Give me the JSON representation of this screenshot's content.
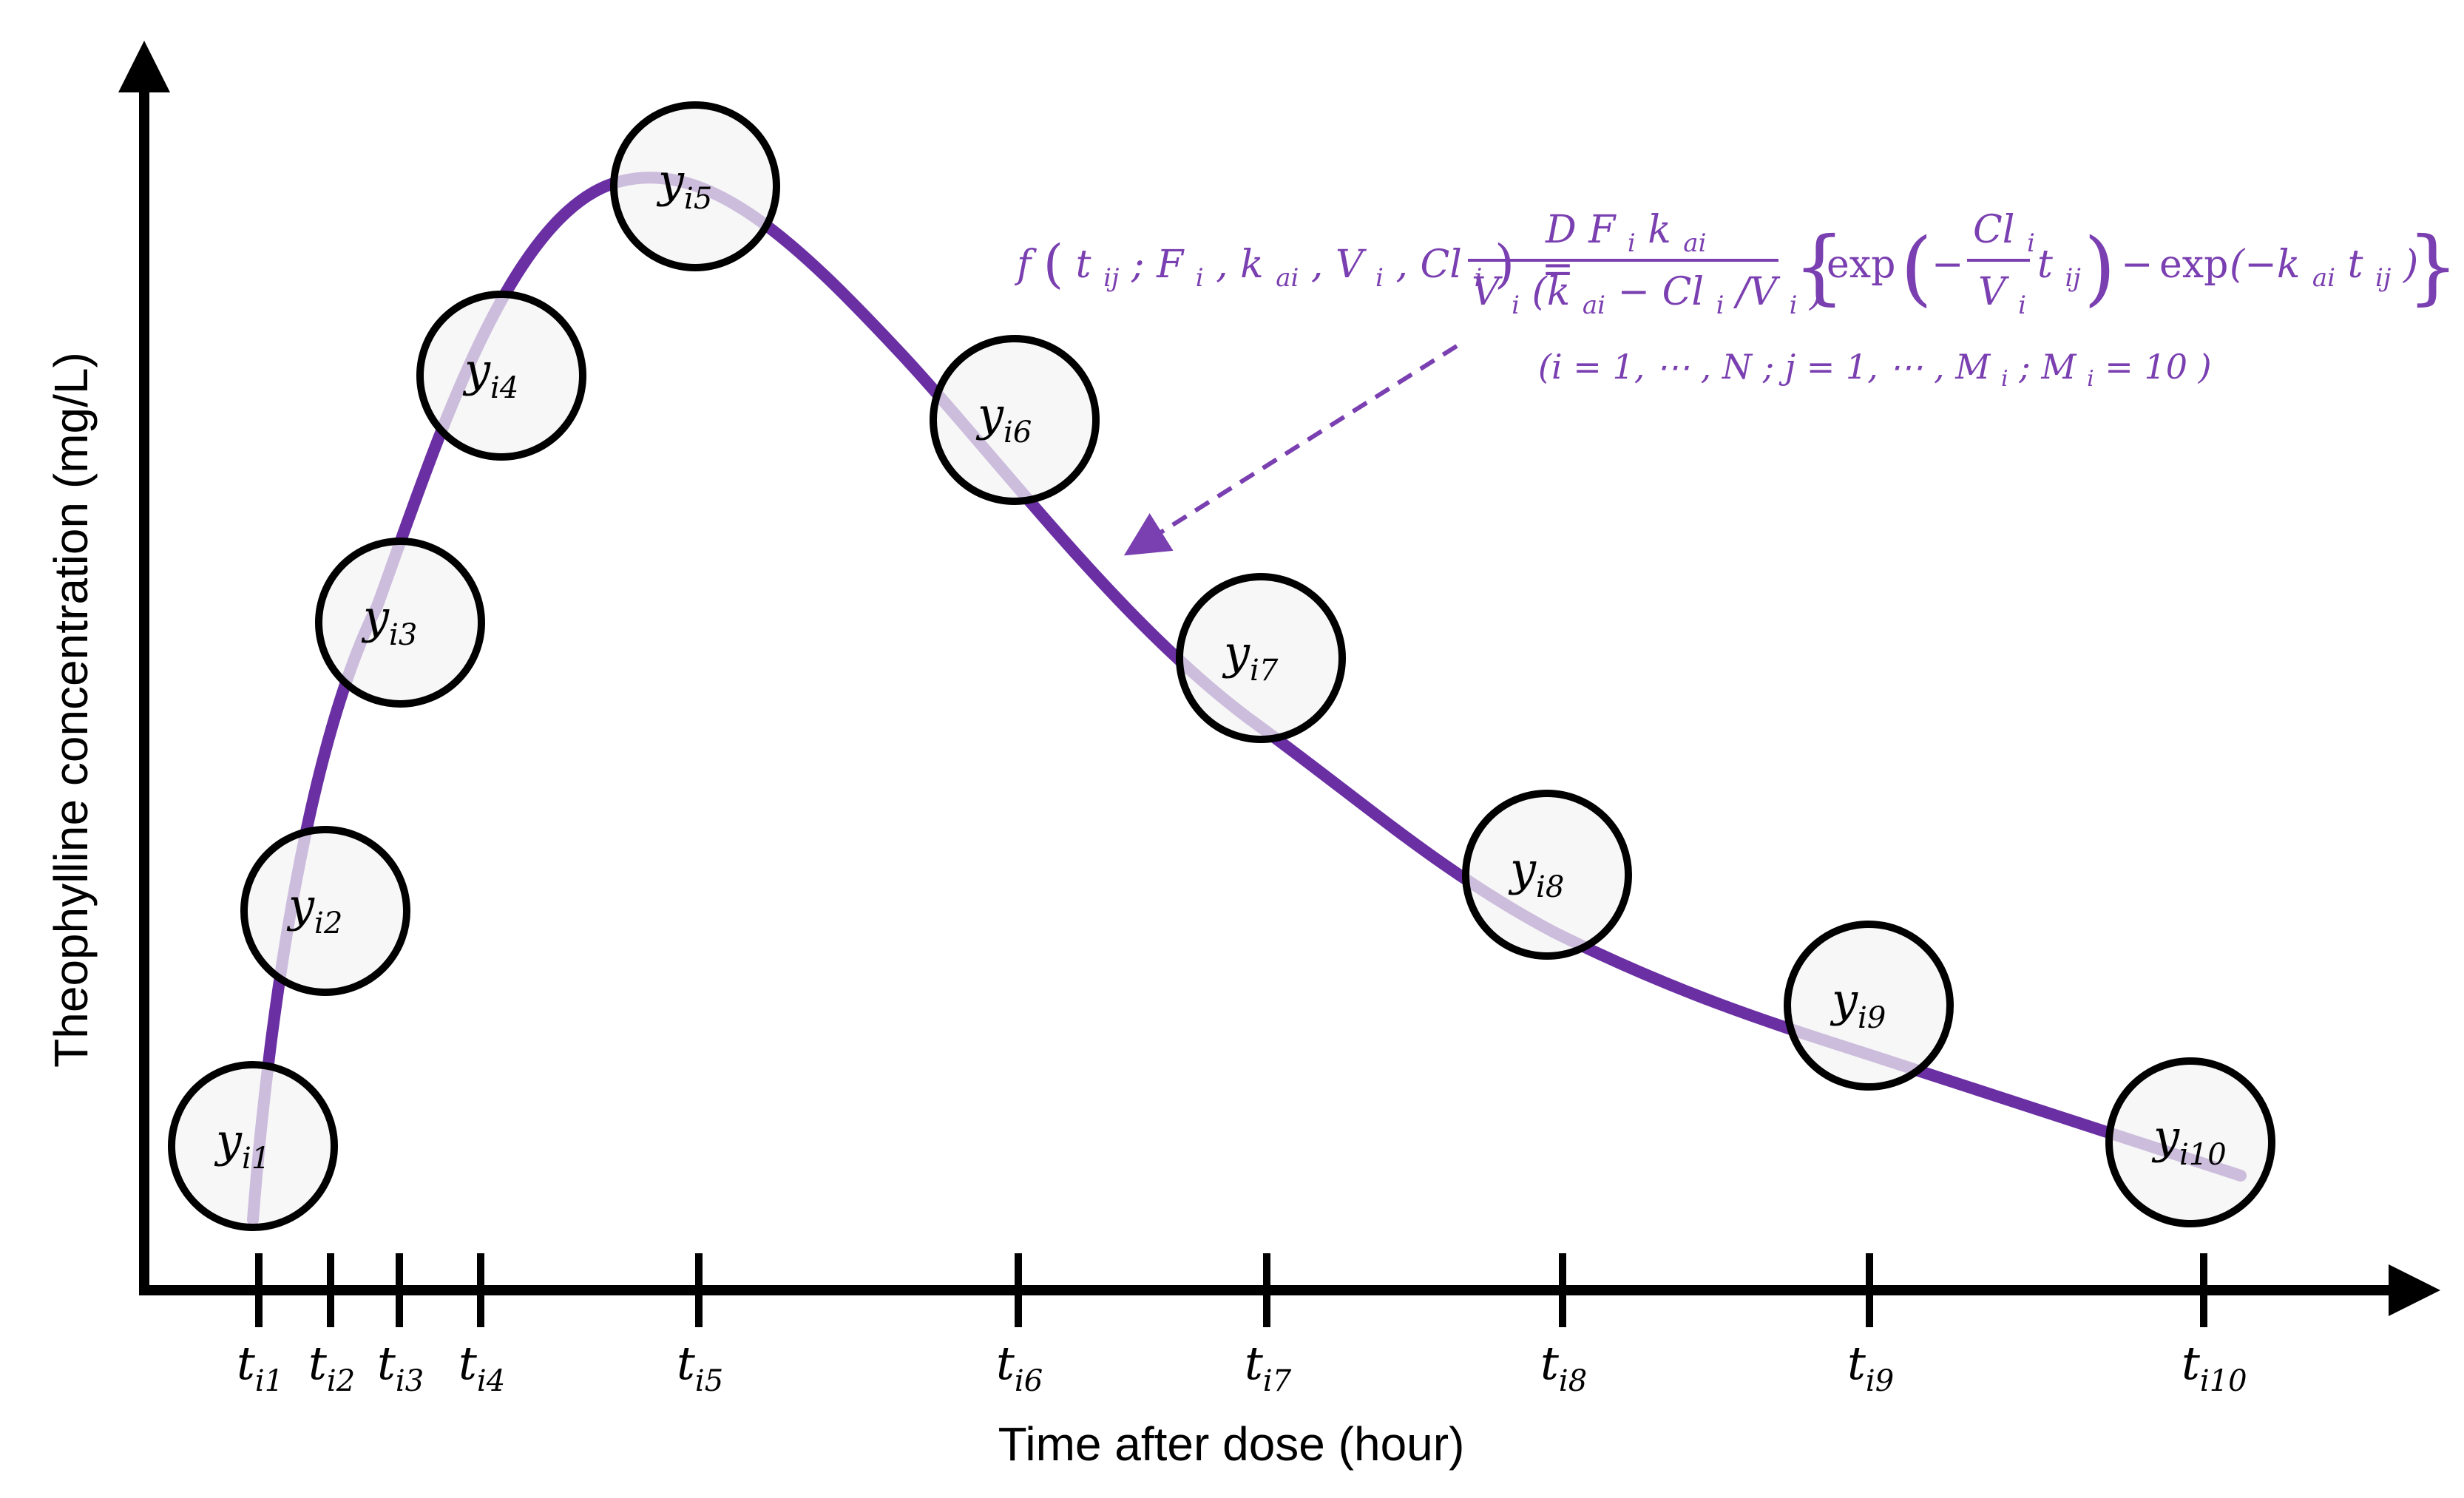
{
  "axes": {
    "y_label": "Theophylline concentration (mg/L)",
    "x_label": "Time after dose (hour)"
  },
  "points": [
    {
      "y_base": "y",
      "y_sub": "i1",
      "t_base": "t",
      "t_sub": "i1"
    },
    {
      "y_base": "y",
      "y_sub": "i2",
      "t_base": "t",
      "t_sub": "i2"
    },
    {
      "y_base": "y",
      "y_sub": "i3",
      "t_base": "t",
      "t_sub": "i3"
    },
    {
      "y_base": "y",
      "y_sub": "i4",
      "t_base": "t",
      "t_sub": "i4"
    },
    {
      "y_base": "y",
      "y_sub": "i5",
      "t_base": "t",
      "t_sub": "i5"
    },
    {
      "y_base": "y",
      "y_sub": "i6",
      "t_base": "t",
      "t_sub": "i6"
    },
    {
      "y_base": "y",
      "y_sub": "i7",
      "t_base": "t",
      "t_sub": "i7"
    },
    {
      "y_base": "y",
      "y_sub": "i8",
      "t_base": "t",
      "t_sub": "i8"
    },
    {
      "y_base": "y",
      "y_sub": "i9",
      "t_base": "t",
      "t_sub": "i9"
    },
    {
      "y_base": "y",
      "y_sub": "i10",
      "t_base": "t",
      "t_sub": "i10"
    }
  ],
  "formula": {
    "lhs_f": "f",
    "lhs_args": "t",
    "lhs_args_sub": "ij",
    "lhs_rest": "; F",
    "lhs_rest_sub": "i",
    "lhs_k": ", k",
    "lhs_k_sub": "ai",
    "lhs_v": ", V",
    "lhs_v_sub": "i",
    "lhs_cl": ", Cl",
    "lhs_cl_sub": "i",
    "equals": "=",
    "num_text": "D F",
    "num_f_sub": "i",
    "num_k": " k",
    "num_k_sub": "ai",
    "den_v": "V",
    "den_v_sub": "i",
    "den_open": "(k",
    "den_k_sub": "ai",
    "den_minus": " − Cl",
    "den_cl_sub": "i",
    "den_slash": "/V",
    "den_v2_sub": "i",
    "den_close": ")",
    "exp1": "exp",
    "minus1": "−",
    "frac_cl": "Cl",
    "frac_cl_sub": "i",
    "frac_v": "V",
    "frac_v_sub": "i",
    "t1": "t",
    "t1_sub": "ij",
    "minus2": "−",
    "exp2": "exp",
    "inner2": "(−k",
    "inner2_k_sub": "ai",
    "inner2_t": "t",
    "inner2_t_sub": "ij",
    "inner2_close": ")",
    "index_line_1": "(i = 1, ⋯ , N  ;  j = 1, ⋯ , M",
    "index_line_sub": "i",
    "index_line_2": "  ;  M",
    "index_line_sub2": "i",
    "index_line_3": " = 10 )"
  },
  "colors": {
    "curve": "#6a2fa3",
    "curve_light": "#9a72c6",
    "formula": "#7a3fb0",
    "axis": "#000000",
    "circle_fill": "#f4f4f4",
    "circle_stroke": "#000000"
  }
}
